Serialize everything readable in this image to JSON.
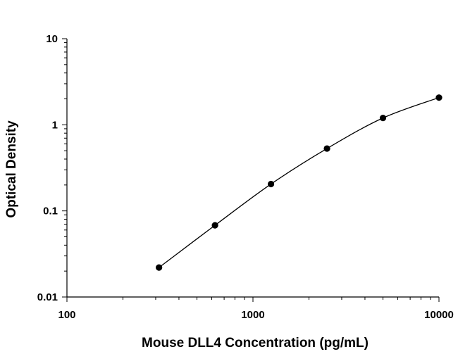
{
  "chart_data": {
    "type": "scatter",
    "xlabel": "Mouse DLL4 Concentration (pg/mL)",
    "ylabel": "Optical Density",
    "xscale": "log",
    "yscale": "log",
    "xlim": [
      100,
      10000
    ],
    "ylim": [
      0.01,
      10
    ],
    "x_ticks": [
      "100",
      "1000",
      "10000"
    ],
    "y_ticks": [
      "0.01",
      "0.1",
      "1",
      "10"
    ],
    "grid": false,
    "fit_line": true,
    "series": [
      {
        "x": [
          312.5,
          625,
          1250,
          2500,
          5000,
          10000
        ],
        "y": [
          0.022,
          0.068,
          0.205,
          0.53,
          1.2,
          2.07
        ]
      }
    ],
    "colors": {
      "points": "#000000",
      "line": "#000000"
    }
  }
}
